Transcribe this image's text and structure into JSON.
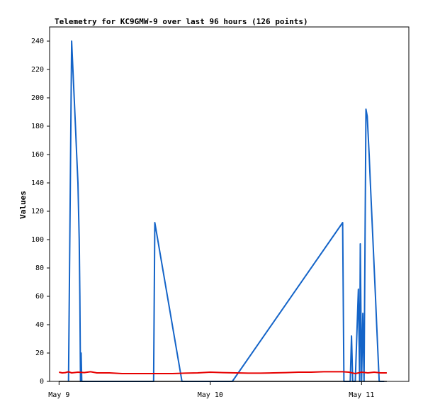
{
  "chart_data": {
    "type": "line",
    "title": "Telemetry for KC9GMW-9 over last 96 hours (126 points)",
    "xlabel": "",
    "ylabel": "Values",
    "x_axis": {
      "kind": "time",
      "ticks": [
        {
          "label": "May 9",
          "value": 0
        },
        {
          "label": "May 10",
          "value": 24
        },
        {
          "label": "May 11",
          "value": 48
        }
      ],
      "range_hours": [
        -1.5,
        55.5
      ]
    },
    "ylim": [
      0,
      250
    ],
    "y_ticks": [
      "0",
      "20",
      "40",
      "60",
      "80",
      "100",
      "120",
      "140",
      "160",
      "180",
      "200",
      "220",
      "240"
    ],
    "grid": false,
    "legend": "none",
    "series": [
      {
        "color": "#1464c8",
        "x": [
          1.5,
          2.0,
          2.2,
          2.4,
          2.6,
          2.8,
          3.0,
          3.2,
          3.3,
          3.4,
          3.5,
          3.6,
          3.7,
          4.3,
          15.0,
          15.2,
          19.5,
          19.6,
          20.0,
          27.0,
          27.5,
          45.0,
          45.2,
          45.4,
          46.2,
          46.4,
          46.6,
          46.8,
          46.9,
          47.0,
          47.5,
          47.7,
          47.8,
          48.0,
          48.2,
          48.4,
          48.7,
          48.9,
          49.0,
          49.2,
          49.4,
          49.6,
          49.8,
          50.0,
          50.2,
          50.4,
          50.6,
          50.8,
          51.0,
          51.2,
          51.4,
          51.6
        ],
        "y": [
          0,
          240,
          220,
          200,
          180,
          160,
          140,
          100,
          60,
          0,
          20,
          0,
          0,
          0,
          0,
          112,
          0,
          0,
          0,
          0,
          0,
          112,
          0,
          0,
          0,
          32,
          0,
          0,
          0,
          0,
          65,
          0,
          97,
          0,
          48,
          0,
          192,
          187,
          178,
          160,
          140,
          120,
          100,
          80,
          60,
          40,
          20,
          0,
          0,
          0,
          0,
          0
        ]
      },
      {
        "color": "#e60000",
        "x": [
          0,
          0.5,
          1.0,
          1.5,
          2.0,
          3.0,
          4.0,
          5.0,
          6.0,
          8.0,
          10.0,
          12.0,
          14.0,
          16.0,
          18.0,
          20.0,
          22.0,
          24.0,
          26.0,
          28.0,
          30.0,
          32.0,
          34.0,
          36.0,
          38.0,
          40.0,
          42.0,
          44.0,
          45.0,
          46.0,
          47.0,
          48.0,
          49.0,
          50.0,
          51.0,
          52.0
        ],
        "y": [
          6.5,
          6.0,
          6.2,
          6.8,
          6.0,
          6.5,
          6.2,
          6.8,
          6.0,
          6.0,
          5.5,
          5.5,
          5.5,
          5.5,
          5.5,
          5.8,
          6.0,
          6.5,
          6.2,
          6.0,
          5.8,
          5.8,
          6.0,
          6.2,
          6.5,
          6.5,
          6.8,
          6.8,
          6.8,
          6.5,
          5.5,
          6.5,
          6.0,
          6.5,
          6.0,
          6.0
        ]
      },
      {
        "color": "#000000",
        "x": [
          0,
          52
        ],
        "y": [
          0,
          0
        ]
      }
    ]
  }
}
